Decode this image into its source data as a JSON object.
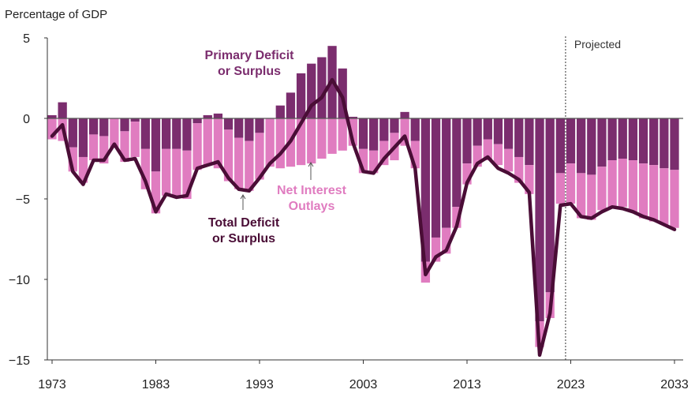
{
  "chart_data": {
    "type": "bar",
    "y_axis_title": "Percentage of GDP",
    "ylim": [
      -15,
      5
    ],
    "y_ticks": [
      5,
      0,
      -5,
      -10,
      -15
    ],
    "x_ticks": [
      1973,
      1983,
      1993,
      2003,
      2013,
      2023,
      2033
    ],
    "projected_label": "Projected",
    "projection_start_year": 2022.5,
    "grid": false,
    "stacked": true,
    "years": [
      1973,
      1974,
      1975,
      1976,
      1977,
      1978,
      1979,
      1980,
      1981,
      1982,
      1983,
      1984,
      1985,
      1986,
      1987,
      1988,
      1989,
      1990,
      1991,
      1992,
      1993,
      1994,
      1995,
      1996,
      1997,
      1998,
      1999,
      2000,
      2001,
      2002,
      2003,
      2004,
      2005,
      2006,
      2007,
      2008,
      2009,
      2010,
      2011,
      2012,
      2013,
      2014,
      2015,
      2016,
      2017,
      2018,
      2019,
      2020,
      2021,
      2022,
      2023,
      2024,
      2025,
      2026,
      2027,
      2028,
      2029,
      2030,
      2031,
      2032,
      2033
    ],
    "series": [
      {
        "name": "Primary Deficit or Surplus",
        "color": "#7b2d6e",
        "values": [
          0.2,
          1.0,
          -1.8,
          -2.4,
          -1.0,
          -1.1,
          0.0,
          -0.8,
          -0.2,
          -1.9,
          -3.3,
          -1.9,
          -1.9,
          -2.0,
          -0.3,
          0.2,
          0.3,
          -0.7,
          -1.2,
          -1.4,
          -0.9,
          0.0,
          0.8,
          1.6,
          2.8,
          3.4,
          3.8,
          4.5,
          3.1,
          0.1,
          -1.9,
          -2.0,
          -1.4,
          -0.9,
          0.4,
          -1.4,
          -8.9,
          -7.4,
          -6.8,
          -5.5,
          -2.8,
          -1.7,
          -1.3,
          -1.6,
          -1.9,
          -2.4,
          -2.9,
          -12.6,
          -10.8,
          -3.4,
          -2.8,
          -3.4,
          -3.5,
          -3.0,
          -2.6,
          -2.5,
          -2.6,
          -2.8,
          -2.9,
          -3.1,
          -3.2
        ]
      },
      {
        "name": "Net Interest Outlays",
        "color": "#e07cc0",
        "values": [
          -1.3,
          -1.4,
          -1.5,
          -1.6,
          -1.6,
          -1.7,
          -1.8,
          -1.9,
          -2.2,
          -2.5,
          -2.6,
          -2.9,
          -3.0,
          -3.0,
          -2.9,
          -2.9,
          -3.1,
          -3.2,
          -3.2,
          -3.1,
          -2.9,
          -3.0,
          -3.1,
          -3.0,
          -2.9,
          -2.8,
          -2.5,
          -2.2,
          -2.0,
          -1.7,
          -1.5,
          -1.4,
          -1.5,
          -1.7,
          -1.7,
          -1.7,
          -1.3,
          -1.5,
          -1.6,
          -1.3,
          -1.3,
          -1.3,
          -1.3,
          -1.3,
          -1.4,
          -1.6,
          -1.8,
          -1.6,
          -1.6,
          -1.9,
          -2.5,
          -2.8,
          -2.8,
          -2.7,
          -2.9,
          -3.0,
          -3.2,
          -3.4,
          -3.5,
          -3.5,
          -3.6
        ]
      },
      {
        "name": "Total Deficit or Surplus",
        "color": "#4a0d36",
        "type": "line",
        "values": [
          -1.1,
          -0.4,
          -3.3,
          -4.1,
          -2.6,
          -2.6,
          -1.6,
          -2.6,
          -2.5,
          -3.9,
          -5.8,
          -4.7,
          -4.9,
          -4.8,
          -3.1,
          -2.9,
          -2.7,
          -3.7,
          -4.4,
          -4.5,
          -3.7,
          -2.8,
          -2.2,
          -1.4,
          -0.3,
          0.8,
          1.3,
          2.4,
          1.3,
          -1.5,
          -3.3,
          -3.4,
          -2.5,
          -1.8,
          -1.1,
          -3.1,
          -9.7,
          -8.6,
          -8.2,
          -6.7,
          -4.0,
          -2.8,
          -2.4,
          -3.1,
          -3.4,
          -3.8,
          -4.6,
          -14.7,
          -12.1,
          -5.4,
          -5.3,
          -6.1,
          -6.2,
          -5.8,
          -5.5,
          -5.6,
          -5.8,
          -6.1,
          -6.3,
          -6.6,
          -6.9
        ]
      }
    ],
    "annotations": [
      {
        "lines": [
          "Primary Deficit",
          "or Surplus"
        ],
        "color": "#7b2d6e"
      },
      {
        "lines": [
          "Net Interest",
          "Outlays"
        ],
        "color": "#e07cc0"
      },
      {
        "lines": [
          "Total Deficit",
          "or Surplus"
        ],
        "color": "#4a0d36"
      }
    ]
  }
}
